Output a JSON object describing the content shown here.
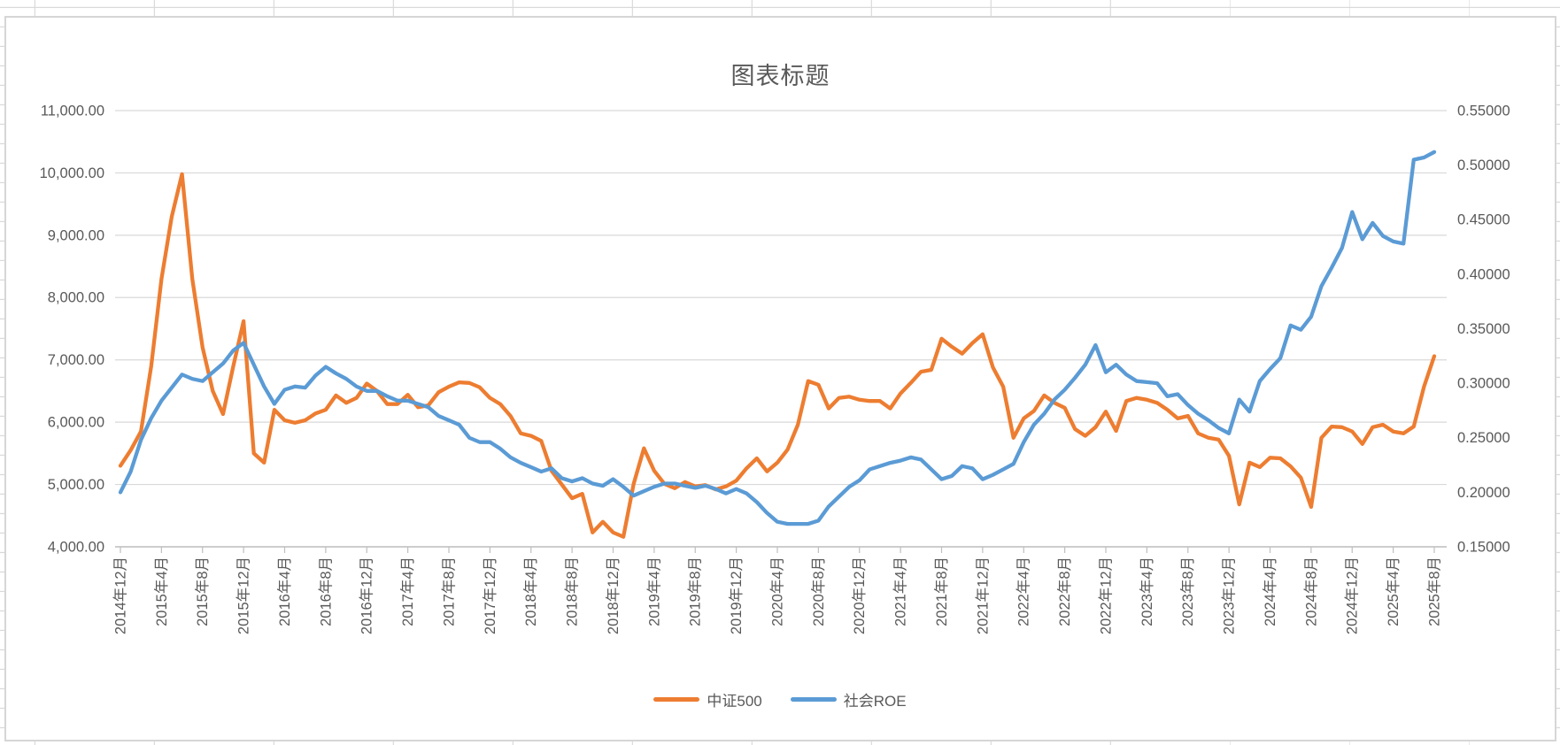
{
  "chart": {
    "title": "图表标题"
  },
  "chart_data": {
    "type": "line",
    "title": "图表标题",
    "x_start": "2014年12月",
    "x_end": "2025年8月",
    "x_interval": "monthly",
    "x_tick_labels": [
      "2014年12月",
      "2015年4月",
      "2015年8月",
      "2015年12月",
      "2016年4月",
      "2016年8月",
      "2016年12月",
      "2017年4月",
      "2017年8月",
      "2017年12月",
      "2018年4月",
      "2018年8月",
      "2018年12月",
      "2019年4月",
      "2019年8月",
      "2019年12月",
      "2020年4月",
      "2020年8月",
      "2020年12月",
      "2021年4月",
      "2021年8月",
      "2021年12月",
      "2022年4月",
      "2022年8月",
      "2022年12月",
      "2023年4月",
      "2023年8月",
      "2023年12月",
      "2024年4月",
      "2024年8月",
      "2024年12月",
      "2025年4月",
      "2025年8月"
    ],
    "left_axis": {
      "min": 4000,
      "max": 11000,
      "step": 1000,
      "tick_labels": [
        "11,000.00",
        "10,000.00",
        "9,000.00",
        "8,000.00",
        "7,000.00",
        "6,000.00",
        "5,000.00",
        "4,000.00"
      ]
    },
    "right_axis": {
      "min": 0.15,
      "max": 0.55,
      "step": 0.05,
      "tick_labels": [
        "0.55000",
        "0.50000",
        "0.45000",
        "0.40000",
        "0.35000",
        "0.30000",
        "0.25000",
        "0.20000",
        "0.15000"
      ]
    },
    "grid": true,
    "legend_position": "bottom",
    "series": [
      {
        "name": "中证500",
        "axis": "left",
        "color": "#ED7D31",
        "values": [
          5300,
          5550,
          5850,
          6900,
          8300,
          9300,
          9980,
          8300,
          7200,
          6500,
          6130,
          6900,
          7620,
          5500,
          5350,
          6200,
          6030,
          5990,
          6030,
          6140,
          6200,
          6430,
          6310,
          6390,
          6620,
          6500,
          6290,
          6290,
          6440,
          6240,
          6270,
          6480,
          6570,
          6640,
          6630,
          6560,
          6390,
          6290,
          6100,
          5820,
          5780,
          5700,
          5220,
          5000,
          4780,
          4850,
          4230,
          4400,
          4230,
          4160,
          5010,
          5580,
          5220,
          5010,
          4940,
          5040,
          4970,
          4990,
          4920,
          4970,
          5060,
          5260,
          5420,
          5210,
          5350,
          5560,
          5960,
          6660,
          6600,
          6220,
          6390,
          6410,
          6360,
          6340,
          6340,
          6220,
          6460,
          6630,
          6810,
          6840,
          7340,
          7210,
          7100,
          7270,
          7410,
          6880,
          6570,
          5750,
          6060,
          6180,
          6430,
          6310,
          6230,
          5890,
          5780,
          5920,
          6170,
          5860,
          6340,
          6390,
          6360,
          6310,
          6200,
          6060,
          6100,
          5820,
          5750,
          5720,
          5460,
          4680,
          5350,
          5280,
          5430,
          5420,
          5290,
          5110,
          4640,
          5750,
          5930,
          5920,
          5850,
          5650,
          5920,
          5960,
          5850,
          5820,
          5930,
          6570,
          7060
        ]
      },
      {
        "name": "社会ROE",
        "axis": "right",
        "color": "#5B9BD5",
        "values": [
          0.2,
          0.219,
          0.248,
          0.268,
          0.284,
          0.296,
          0.308,
          0.304,
          0.302,
          0.31,
          0.318,
          0.33,
          0.337,
          0.317,
          0.297,
          0.281,
          0.294,
          0.297,
          0.296,
          0.307,
          0.315,
          0.309,
          0.304,
          0.297,
          0.293,
          0.293,
          0.288,
          0.284,
          0.284,
          0.281,
          0.278,
          0.27,
          0.266,
          0.262,
          0.25,
          0.246,
          0.246,
          0.24,
          0.232,
          0.227,
          0.223,
          0.219,
          0.222,
          0.213,
          0.21,
          0.213,
          0.208,
          0.206,
          0.212,
          0.205,
          0.197,
          0.201,
          0.205,
          0.208,
          0.208,
          0.206,
          0.204,
          0.206,
          0.203,
          0.199,
          0.203,
          0.199,
          0.191,
          0.181,
          0.173,
          0.171,
          0.171,
          0.171,
          0.174,
          0.187,
          0.196,
          0.205,
          0.211,
          0.221,
          0.224,
          0.227,
          0.229,
          0.232,
          0.23,
          0.221,
          0.212,
          0.215,
          0.224,
          0.222,
          0.212,
          0.216,
          0.221,
          0.226,
          0.246,
          0.262,
          0.272,
          0.285,
          0.294,
          0.305,
          0.317,
          0.335,
          0.31,
          0.317,
          0.308,
          0.302,
          0.301,
          0.3,
          0.288,
          0.29,
          0.28,
          0.272,
          0.266,
          0.259,
          0.254,
          0.285,
          0.274,
          0.302,
          0.313,
          0.323,
          0.353,
          0.349,
          0.361,
          0.389,
          0.406,
          0.424,
          0.457,
          0.432,
          0.447,
          0.435,
          0.43,
          0.428,
          0.505,
          0.507,
          0.512
        ]
      }
    ],
    "colors": {
      "gridline": "#d9d9d9",
      "axis_line": "#bfbfbf",
      "axis_text": "#595959"
    }
  }
}
